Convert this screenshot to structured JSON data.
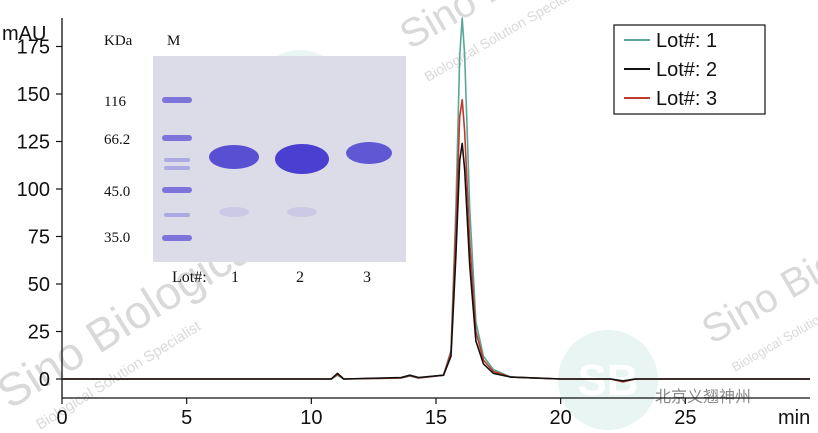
{
  "chart_data": {
    "type": "line",
    "title": "",
    "xlabel": "min",
    "ylabel": "mAU",
    "xlim": [
      0,
      30
    ],
    "ylim": [
      -10,
      190
    ],
    "xticks": [
      0,
      5,
      10,
      15,
      20,
      25
    ],
    "yticks": [
      0,
      25,
      50,
      75,
      100,
      125,
      150,
      175
    ],
    "legend_position": "top-right",
    "series": [
      {
        "name": "Lot#: 1",
        "color": "#5aa797",
        "x": [
          0,
          10.8,
          11.05,
          11.3,
          13.6,
          13.95,
          14.3,
          15.3,
          15.6,
          15.8,
          15.95,
          16.05,
          16.15,
          16.35,
          16.6,
          16.9,
          17.3,
          18,
          20,
          22,
          22.5,
          23,
          25,
          30
        ],
        "y": [
          0,
          0,
          2,
          0,
          0.5,
          1.5,
          0.5,
          2,
          15,
          90,
          170,
          190,
          170,
          90,
          30,
          12,
          5,
          1,
          0,
          0,
          -1,
          0,
          0,
          0
        ]
      },
      {
        "name": "Lot#: 2",
        "color": "#111111",
        "x": [
          0,
          10.8,
          11.05,
          11.3,
          13.6,
          13.95,
          14.3,
          15.3,
          15.6,
          15.8,
          15.95,
          16.05,
          16.15,
          16.35,
          16.6,
          16.9,
          17.3,
          18,
          20,
          22,
          22.5,
          23,
          25,
          30
        ],
        "y": [
          0,
          0,
          3,
          0,
          0.8,
          2,
          0.8,
          2,
          12,
          65,
          115,
          124,
          110,
          60,
          20,
          8,
          3,
          1,
          0,
          0,
          -1,
          0,
          0,
          0
        ]
      },
      {
        "name": "Lot#: 3",
        "color": "#c0392b",
        "x": [
          0,
          10.8,
          11.05,
          11.3,
          13.6,
          13.95,
          14.3,
          15.3,
          15.6,
          15.8,
          15.95,
          16.05,
          16.15,
          16.35,
          16.6,
          16.9,
          17.3,
          18,
          20,
          22,
          22.5,
          23,
          25,
          30
        ],
        "y": [
          0,
          0,
          2.5,
          0,
          0.6,
          1.8,
          0.6,
          2,
          14,
          80,
          138,
          147,
          130,
          72,
          25,
          10,
          4,
          1,
          0,
          0,
          -1.5,
          0,
          0,
          0
        ]
      }
    ],
    "inset_gel": {
      "unit_label": "KDa",
      "marker_label": "M",
      "markers": [
        "116",
        "66.2",
        "45.0",
        "35.0"
      ],
      "lane_prefix": "Lot#:",
      "lanes": [
        "1",
        "2",
        "3"
      ],
      "gel_background": "#dcdce8",
      "band_color": "#4a3fd0"
    },
    "watermarks": [
      "Sino Biological",
      "Biological Solution Specialist",
      "SB",
      "北京义翘神州"
    ]
  }
}
